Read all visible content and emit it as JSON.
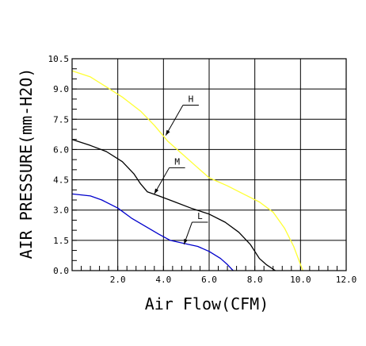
{
  "chart_data": {
    "type": "line",
    "title": "",
    "xlabel": "Air Flow(CFM)",
    "ylabel": "AIR PRESSURE(mm-H2O)",
    "xlim": [
      0,
      12
    ],
    "ylim": [
      0,
      10.5
    ],
    "x_tick_labels": [
      {
        "value": 2,
        "text": "2.0"
      },
      {
        "value": 4,
        "text": "4.0"
      },
      {
        "value": 6,
        "text": "6.0"
      },
      {
        "value": 8,
        "text": "8.0"
      },
      {
        "value": 10,
        "text": "10.0"
      },
      {
        "value": 12,
        "text": "12.0"
      }
    ],
    "y_tick_labels": [
      {
        "value": 0,
        "text": "0.0"
      },
      {
        "value": 1.5,
        "text": "1.5"
      },
      {
        "value": 3,
        "text": "3.0"
      },
      {
        "value": 4.5,
        "text": "4.5"
      },
      {
        "value": 6,
        "text": "6.0"
      },
      {
        "value": 7.5,
        "text": "7.5"
      },
      {
        "value": 9,
        "text": "9.0"
      },
      {
        "value": 10.5,
        "text": "10.5"
      }
    ],
    "grid": true,
    "series": [
      {
        "name": "H",
        "color": "#ffff33",
        "label_at": [
          5.2,
          8.2
        ],
        "pointer_to": [
          4.1,
          6.7
        ],
        "points": [
          [
            0,
            9.9
          ],
          [
            0.8,
            9.6
          ],
          [
            1.5,
            9.1
          ],
          [
            2.2,
            8.6
          ],
          [
            3.0,
            7.9
          ],
          [
            3.6,
            7.2
          ],
          [
            4.2,
            6.4
          ],
          [
            4.8,
            5.8
          ],
          [
            5.4,
            5.2
          ],
          [
            6.0,
            4.6
          ],
          [
            6.8,
            4.2
          ],
          [
            7.5,
            3.8
          ],
          [
            8.2,
            3.4
          ],
          [
            8.8,
            2.9
          ],
          [
            9.3,
            2.1
          ],
          [
            9.7,
            1.2
          ],
          [
            10.1,
            0.0
          ]
        ]
      },
      {
        "name": "M",
        "color": "#000000",
        "label_at": [
          4.6,
          5.1
        ],
        "pointer_to": [
          3.6,
          3.8
        ],
        "points": [
          [
            0,
            6.5
          ],
          [
            0.8,
            6.2
          ],
          [
            1.5,
            5.9
          ],
          [
            2.2,
            5.4
          ],
          [
            2.7,
            4.8
          ],
          [
            3.0,
            4.3
          ],
          [
            3.3,
            3.9
          ],
          [
            3.8,
            3.7
          ],
          [
            4.5,
            3.4
          ],
          [
            5.2,
            3.1
          ],
          [
            6.0,
            2.8
          ],
          [
            6.7,
            2.4
          ],
          [
            7.3,
            1.9
          ],
          [
            7.8,
            1.3
          ],
          [
            8.2,
            0.6
          ],
          [
            8.5,
            0.3
          ],
          [
            8.9,
            0.0
          ]
        ]
      },
      {
        "name": "L",
        "color": "#0000cc",
        "label_at": [
          5.6,
          2.4
        ],
        "pointer_to": [
          4.9,
          1.3
        ],
        "points": [
          [
            0,
            3.8
          ],
          [
            0.8,
            3.7
          ],
          [
            1.3,
            3.5
          ],
          [
            2.0,
            3.1
          ],
          [
            2.6,
            2.6
          ],
          [
            3.2,
            2.2
          ],
          [
            3.8,
            1.8
          ],
          [
            4.3,
            1.5
          ],
          [
            4.9,
            1.35
          ],
          [
            5.5,
            1.2
          ],
          [
            6.0,
            0.95
          ],
          [
            6.5,
            0.6
          ],
          [
            6.8,
            0.3
          ],
          [
            7.05,
            0.0
          ]
        ]
      }
    ]
  }
}
